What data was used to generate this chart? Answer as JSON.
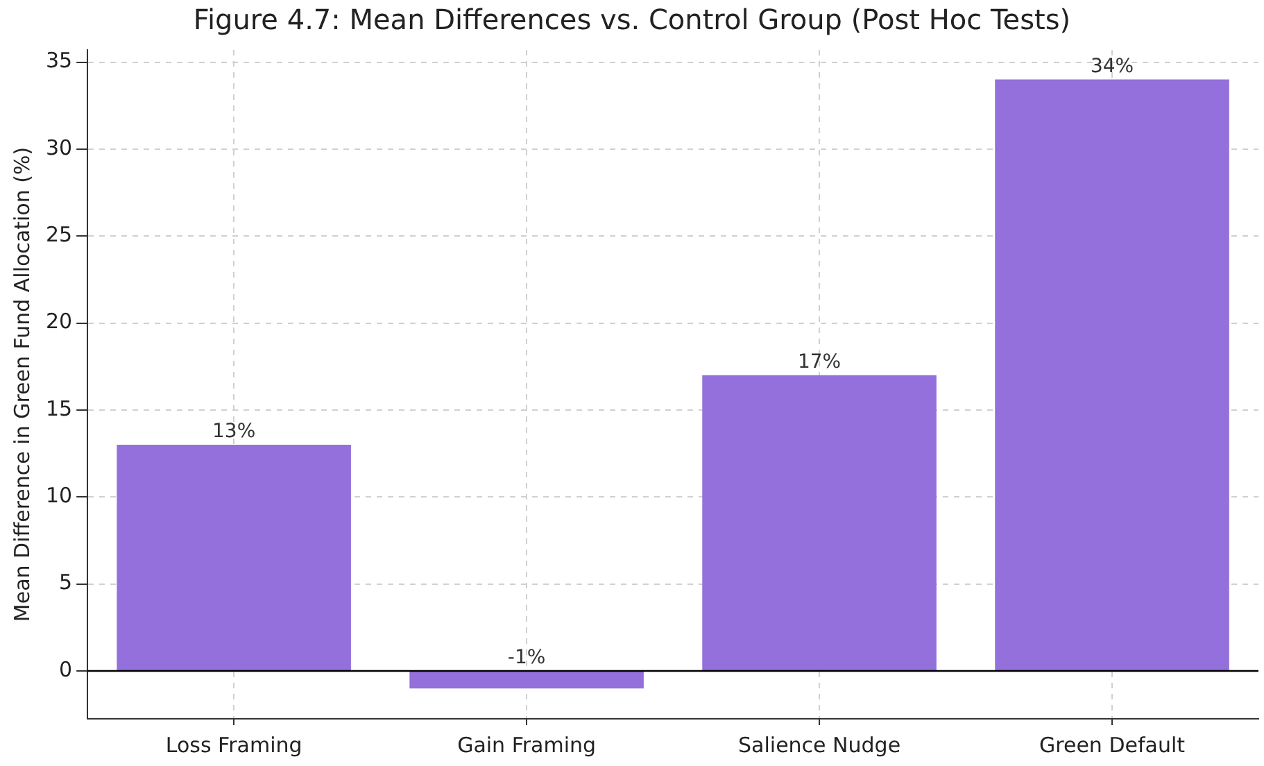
{
  "chart_data": {
    "type": "bar",
    "title": "Figure 4.7: Mean Differences vs. Control Group (Post Hoc Tests)",
    "ylabel": "Mean Difference in Green Fund Allocation (%)",
    "categories": [
      "Loss Framing",
      "Gain Framing",
      "Salience Nudge",
      "Green Default"
    ],
    "values": [
      13,
      -1,
      17,
      34
    ],
    "value_labels": [
      "13%",
      "-1%",
      "17%",
      "34%"
    ],
    "color": "#9370db",
    "ylim": [
      -2.75,
      35.7
    ],
    "yticks": [
      0,
      5,
      10,
      15,
      20,
      25,
      30,
      35
    ],
    "ref_lines": [
      {
        "axis": "y",
        "value": 0,
        "color": "#000000"
      }
    ],
    "grid": true,
    "legend": false
  }
}
